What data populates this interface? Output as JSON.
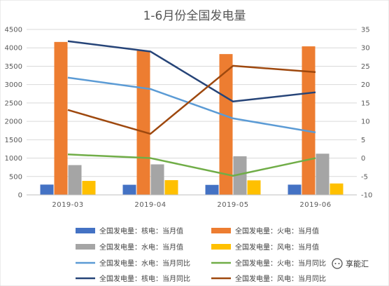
{
  "chart_data": {
    "type": "bar",
    "title": "1-6月份全国发电量",
    "xlabel": "",
    "ylabel": "",
    "categories": [
      "2019-03",
      "2019-04",
      "2019-05",
      "2019-06"
    ],
    "ylim_left": [
      0,
      4500
    ],
    "yticks_left": [
      0,
      500,
      1000,
      1500,
      2000,
      2500,
      3000,
      3500,
      4000,
      4500
    ],
    "ylim_right": [
      -10,
      35
    ],
    "yticks_right": [
      -10,
      -5,
      0,
      5,
      10,
      15,
      20,
      25,
      30,
      35
    ],
    "grid": true,
    "legend_position": "bottom",
    "bar_series": [
      {
        "name": "全国发电量：核电：当月值",
        "color": "#4472C4",
        "values": [
          280,
          275,
          272,
          278
        ]
      },
      {
        "name": "全国发电量：火电：当月值",
        "color": "#ED7D31",
        "values": [
          4160,
          3920,
          3830,
          4040
        ]
      },
      {
        "name": "全国发电量：水电：当月值",
        "color": "#A5A5A5",
        "values": [
          810,
          830,
          1050,
          1120
        ]
      },
      {
        "name": "全国发电量：风电：当月值",
        "color": "#FFC000",
        "values": [
          380,
          400,
          395,
          310
        ]
      }
    ],
    "line_series": [
      {
        "name": "全国发电量：水电：当月同比",
        "color": "#5B9BD5",
        "values": [
          21.9,
          18.8,
          10.8,
          7.0
        ]
      },
      {
        "name": "全国发电量：火电：当月同比",
        "color": "#70AD47",
        "values": [
          1.0,
          0.0,
          -4.8,
          0.0
        ]
      },
      {
        "name": "全国发电量：核电：当月同比",
        "color": "#264478",
        "values": [
          31.8,
          29.0,
          15.4,
          17.9
        ]
      },
      {
        "name": "全国发电量：风电：当月同比",
        "color": "#9E480E",
        "values": [
          13.1,
          6.6,
          25.1,
          23.4
        ]
      }
    ]
  },
  "legend": {
    "items": [
      {
        "label": "全国发电量：核电：当月值",
        "kind": "bar",
        "color": "#4472C4"
      },
      {
        "label": "全国发电量：火电：当月值",
        "kind": "bar",
        "color": "#ED7D31"
      },
      {
        "label": "全国发电量：水电：当月值",
        "kind": "bar",
        "color": "#A5A5A5"
      },
      {
        "label": "全国发电量：风电：当月值",
        "kind": "bar",
        "color": "#FFC000"
      },
      {
        "label": "全国发电量：水电：当月同比",
        "kind": "line",
        "color": "#5B9BD5"
      },
      {
        "label": "全国发电量：火电：当月同比",
        "kind": "line",
        "color": "#70AD47"
      },
      {
        "label": "全国发电量：核电：当月同比",
        "kind": "line",
        "color": "#264478"
      },
      {
        "label": "全国发电量：风电：当月同比",
        "kind": "line",
        "color": "#9E480E"
      }
    ]
  },
  "watermark": {
    "text": "享能汇",
    "icon": "chat-bubble-icon"
  }
}
